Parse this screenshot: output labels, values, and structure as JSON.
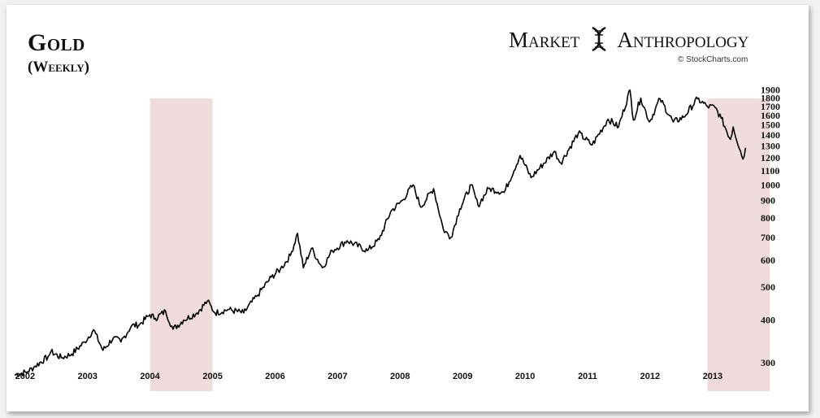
{
  "header": {
    "title": "Gold",
    "subtitle": "(Weekly)",
    "brand_left": "Market",
    "brand_right": "Anthropology",
    "credit": "© StockCharts.com"
  },
  "colors": {
    "line": "#000000",
    "shade": "#f0dcdc",
    "background": "#ffffff"
  },
  "chart_data": {
    "type": "line",
    "title": "Gold (Weekly)",
    "xlabel": "",
    "ylabel": "",
    "y_scale": "log",
    "ylim": [
      250,
      1950
    ],
    "x_range": [
      "2001-11-01",
      "2013-07-15"
    ],
    "x_tick_labels": [
      "2002",
      "2003",
      "2004",
      "2005",
      "2006",
      "2007",
      "2008",
      "2009",
      "2010",
      "2011",
      "2012",
      "2013"
    ],
    "y_tick_labels": [
      1900,
      1800,
      1700,
      1600,
      1500,
      1400,
      1300,
      1200,
      1100,
      1000,
      900,
      800,
      700,
      600,
      500,
      400,
      300
    ],
    "shaded_periods": [
      {
        "start": "2004-01-01",
        "end": "2005-01-01"
      },
      {
        "start": "2012-12-01",
        "end": "2013-12-01"
      }
    ],
    "grid": false,
    "legend": "none",
    "series": [
      {
        "points": [
          [
            "2001-11-01",
            276
          ],
          [
            "2002-01-15",
            282
          ],
          [
            "2002-03-01",
            293
          ],
          [
            "2002-05-15",
            312
          ],
          [
            "2002-06-01",
            323
          ],
          [
            "2002-08-01",
            310
          ],
          [
            "2002-10-01",
            318
          ],
          [
            "2002-12-15",
            345
          ],
          [
            "2003-02-05",
            375
          ],
          [
            "2003-04-01",
            326
          ],
          [
            "2003-06-01",
            355
          ],
          [
            "2003-07-15",
            345
          ],
          [
            "2003-09-15",
            385
          ],
          [
            "2003-11-01",
            388
          ],
          [
            "2003-12-31",
            415
          ],
          [
            "2004-02-01",
            405
          ],
          [
            "2004-04-01",
            425
          ],
          [
            "2004-05-15",
            376
          ],
          [
            "2004-07-15",
            400
          ],
          [
            "2004-10-01",
            420
          ],
          [
            "2004-12-01",
            455
          ],
          [
            "2005-01-15",
            420
          ],
          [
            "2005-04-01",
            430
          ],
          [
            "2005-07-01",
            420
          ],
          [
            "2005-09-15",
            470
          ],
          [
            "2005-12-10",
            535
          ],
          [
            "2006-02-01",
            565
          ],
          [
            "2006-04-01",
            620
          ],
          [
            "2006-05-12",
            720
          ],
          [
            "2006-06-15",
            570
          ],
          [
            "2006-08-01",
            650
          ],
          [
            "2006-10-05",
            570
          ],
          [
            "2006-12-01",
            640
          ],
          [
            "2007-02-26",
            685
          ],
          [
            "2007-06-25",
            640
          ],
          [
            "2007-09-01",
            690
          ],
          [
            "2007-11-08",
            835
          ],
          [
            "2008-01-15",
            900
          ],
          [
            "2008-03-17",
            1000
          ],
          [
            "2008-05-01",
            860
          ],
          [
            "2008-07-15",
            975
          ],
          [
            "2008-09-10",
            740
          ],
          [
            "2008-10-24",
            700
          ],
          [
            "2008-12-15",
            850
          ],
          [
            "2009-02-20",
            1000
          ],
          [
            "2009-04-01",
            870
          ],
          [
            "2009-06-01",
            975
          ],
          [
            "2009-09-01",
            950
          ],
          [
            "2009-12-03",
            1220
          ],
          [
            "2010-02-05",
            1050
          ],
          [
            "2010-06-21",
            1255
          ],
          [
            "2010-07-28",
            1160
          ],
          [
            "2010-11-08",
            1420
          ],
          [
            "2011-01-28",
            1310
          ],
          [
            "2011-05-01",
            1560
          ],
          [
            "2011-07-01",
            1480
          ],
          [
            "2011-09-06",
            1900
          ],
          [
            "2011-09-26",
            1550
          ],
          [
            "2011-11-08",
            1800
          ],
          [
            "2011-12-29",
            1530
          ],
          [
            "2012-02-28",
            1790
          ],
          [
            "2012-05-16",
            1530
          ],
          [
            "2012-07-15",
            1580
          ],
          [
            "2012-10-04",
            1790
          ],
          [
            "2012-12-01",
            1700
          ],
          [
            "2013-01-15",
            1690
          ],
          [
            "2013-02-20",
            1570
          ],
          [
            "2013-04-15",
            1360
          ],
          [
            "2013-05-01",
            1480
          ],
          [
            "2013-06-27",
            1190
          ],
          [
            "2013-07-12",
            1285
          ]
        ]
      }
    ]
  }
}
